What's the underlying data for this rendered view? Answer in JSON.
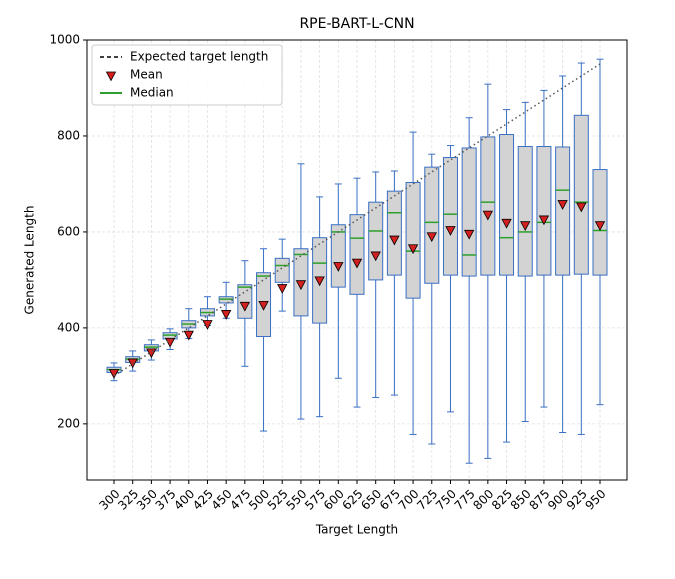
{
  "chart_data": {
    "type": "box",
    "title": "RPE-BART-L-CNN",
    "xlabel": "Target Length",
    "ylabel": "Generated Length",
    "categories": [
      "300",
      "325",
      "350",
      "375",
      "400",
      "425",
      "450",
      "475",
      "500",
      "525",
      "550",
      "575",
      "600",
      "625",
      "650",
      "675",
      "700",
      "725",
      "750",
      "775",
      "800",
      "825",
      "850",
      "875",
      "900",
      "925",
      "950"
    ],
    "whisker_low": [
      290,
      310,
      333,
      355,
      378,
      405,
      420,
      320,
      185,
      435,
      210,
      215,
      295,
      235,
      255,
      260,
      178,
      158,
      225,
      118,
      128,
      162,
      205,
      235,
      182,
      178,
      240
    ],
    "q1": [
      307,
      328,
      352,
      377,
      400,
      425,
      452,
      420,
      382,
      495,
      425,
      410,
      485,
      470,
      500,
      510,
      462,
      493,
      510,
      508,
      510,
      510,
      508,
      510,
      510,
      512,
      510
    ],
    "q3": [
      318,
      340,
      365,
      390,
      415,
      440,
      465,
      490,
      515,
      545,
      565,
      588,
      615,
      636,
      662,
      685,
      703,
      735,
      755,
      775,
      798,
      803,
      778,
      778,
      777,
      843,
      730
    ],
    "whisker_high": [
      327,
      352,
      375,
      398,
      440,
      465,
      495,
      540,
      565,
      585,
      742,
      673,
      700,
      712,
      725,
      727,
      808,
      762,
      780,
      838,
      908,
      855,
      870,
      895,
      925,
      952,
      960
    ],
    "median": {
      "name": "Median",
      "color": "#2ca02c",
      "values": [
        313,
        335,
        360,
        385,
        408,
        432,
        460,
        485,
        508,
        530,
        553,
        535,
        600,
        587,
        602,
        640,
        560,
        620,
        637,
        552,
        662,
        588,
        600,
        620,
        687,
        662,
        603
      ]
    },
    "mean": {
      "name": "Mean",
      "color": "#d62020",
      "values": [
        305,
        327,
        348,
        370,
        385,
        407,
        428,
        445,
        447,
        482,
        490,
        498,
        528,
        535,
        550,
        583,
        565,
        590,
        603,
        595,
        635,
        618,
        613,
        625,
        657,
        652,
        613
      ]
    },
    "expected": {
      "name": "Expected target length",
      "color": "#000000",
      "values": [
        300,
        325,
        350,
        375,
        400,
        425,
        450,
        475,
        500,
        525,
        550,
        575,
        600,
        625,
        650,
        675,
        700,
        725,
        750,
        775,
        800,
        825,
        850,
        875,
        900,
        925,
        950
      ]
    },
    "box_color": "#d3d3d3",
    "whisker_color": "#3a6fc4",
    "ylim": [
      83,
      1000
    ],
    "yticks": [
      200,
      400,
      600,
      800,
      1000
    ],
    "grid": true,
    "legend": "upper left"
  }
}
